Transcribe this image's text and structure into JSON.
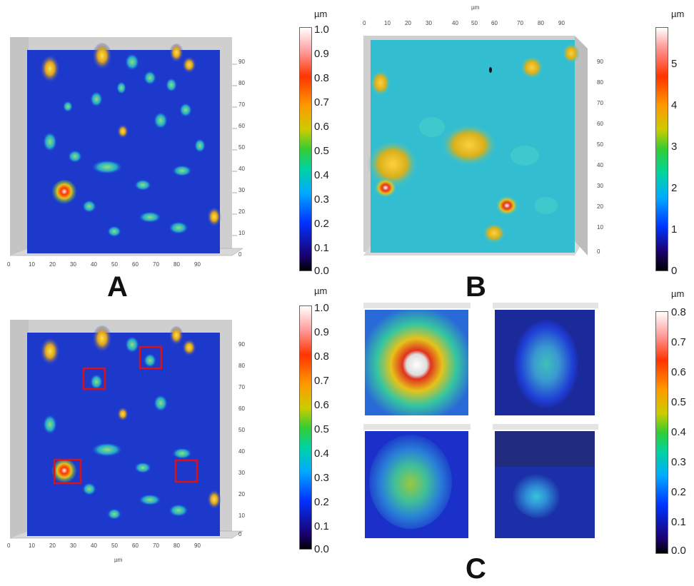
{
  "panel_labels": {
    "a": "A",
    "b": "B",
    "c": "C"
  },
  "axis_unit": "µm",
  "colorbars": [
    {
      "unit": "µm",
      "ticks": [
        "1.0",
        "0.9",
        "0.8",
        "0.7",
        "0.6",
        "0.5",
        "0.4",
        "0.3",
        "0.2",
        "0.1",
        "0.0"
      ]
    },
    {
      "unit": "µm",
      "ticks": [
        "5",
        "4",
        "3",
        "2",
        "1",
        "0"
      ]
    },
    {
      "unit": "µm",
      "ticks": [
        "1.0",
        "0.9",
        "0.8",
        "0.7",
        "0.6",
        "0.5",
        "0.4",
        "0.3",
        "0.2",
        "0.1",
        "0.0"
      ]
    },
    {
      "unit": "µm",
      "ticks": [
        "0.8",
        "0.7",
        "0.6",
        "0.5",
        "0.4",
        "0.3",
        "0.2",
        "0.1",
        "0.0"
      ]
    }
  ],
  "axis_ticks": {
    "x_a": [
      "0",
      "10",
      "20",
      "30",
      "40",
      "50",
      "60",
      "70",
      "80",
      "90"
    ],
    "y_a": [
      "90",
      "80",
      "70",
      "60",
      "50",
      "40",
      "30",
      "20",
      "10",
      "0"
    ],
    "x_b": [
      "0",
      "10",
      "20",
      "30",
      "40",
      "50",
      "60",
      "70",
      "80",
      "90"
    ],
    "y_b": [
      "90",
      "80",
      "70",
      "60",
      "50",
      "40",
      "30",
      "20",
      "10",
      "0"
    ]
  },
  "colors": {
    "surface_blue": "#1f3fd6",
    "surface_cyan": "#35c6d6",
    "peak_yellow": "#e6c21a",
    "peak_red": "#e0321e",
    "highlight_box": "#e01010"
  }
}
